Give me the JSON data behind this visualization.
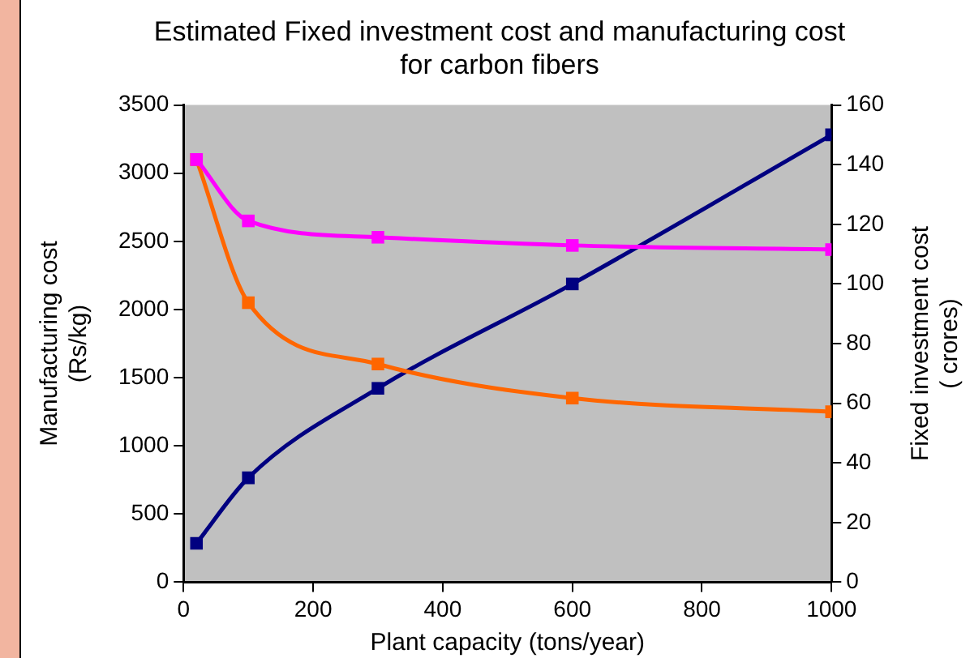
{
  "chart_data": {
    "type": "line",
    "title": "Estimated Fixed investment cost and manufacturing cost for carbon fibers",
    "xlabel": "Plant capacity (tons/year)",
    "ylabel": "Manufacturing cost\n(Rs/kg)",
    "y2label": "Fixed investment cost\n( crores)",
    "x": [
      20,
      100,
      300,
      600,
      1000
    ],
    "xlim": [
      0,
      1000
    ],
    "xticks": [
      0,
      200,
      400,
      600,
      800,
      1000
    ],
    "ylim": [
      0,
      3500
    ],
    "yticks": [
      0,
      500,
      1000,
      1500,
      2000,
      2500,
      3000,
      3500
    ],
    "y2lim": [
      0,
      160
    ],
    "y2ticks": [
      0,
      20,
      40,
      60,
      80,
      100,
      120,
      140,
      160
    ],
    "series": [
      {
        "color": "#ff00ff",
        "values": [
          3100,
          2650,
          2530,
          2470,
          2440
        ]
      },
      {
        "color": "#ff6600",
        "values": [
          3100,
          2050,
          1600,
          1350,
          1250
        ]
      },
      {
        "color": "#000080",
        "axis": "y2",
        "values": [
          13,
          35,
          65,
          100,
          150
        ]
      }
    ],
    "marker": "square",
    "grid": false,
    "legend": false
  }
}
